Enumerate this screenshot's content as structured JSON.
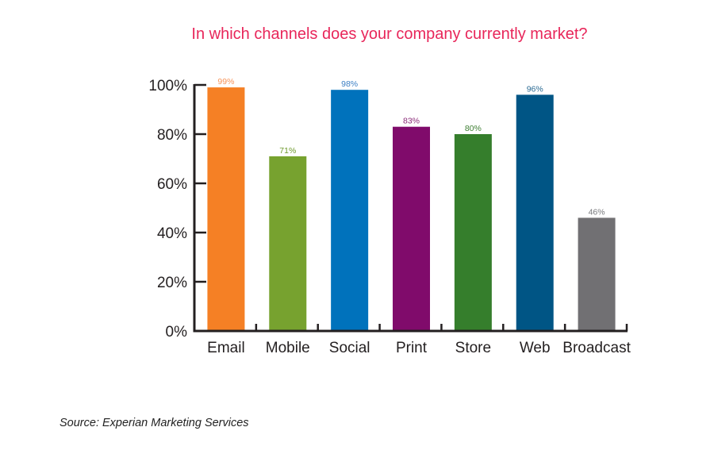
{
  "chart_data": {
    "type": "bar",
    "title": "In which channels does your company currently market?",
    "categories": [
      "Email",
      "Mobile",
      "Social",
      "Print",
      "Store",
      "Web",
      "Broadcast"
    ],
    "values": [
      99,
      71,
      98,
      83,
      80,
      96,
      46
    ],
    "data_labels": [
      "99%",
      "71%",
      "98%",
      "83%",
      "80%",
      "96%",
      "46%"
    ],
    "colors": [
      "#f58025",
      "#77a22f",
      "#0072bc",
      "#800b6b",
      "#357e2c",
      "#005585",
      "#717073"
    ],
    "label_colors": [
      "#f7945a",
      "#6f9a2e",
      "#3b7fc4",
      "#8a2a78",
      "#3f7f34",
      "#2a6a93",
      "#77787b"
    ],
    "yticks": [
      "0%",
      "20%",
      "40%",
      "60%",
      "80%",
      "100%"
    ],
    "ylim": [
      0,
      100
    ],
    "xlabel": "",
    "ylabel": "",
    "grid": false,
    "legend": "none",
    "title_color": "#e8265a"
  },
  "source": "Source: Experian Marketing Services"
}
